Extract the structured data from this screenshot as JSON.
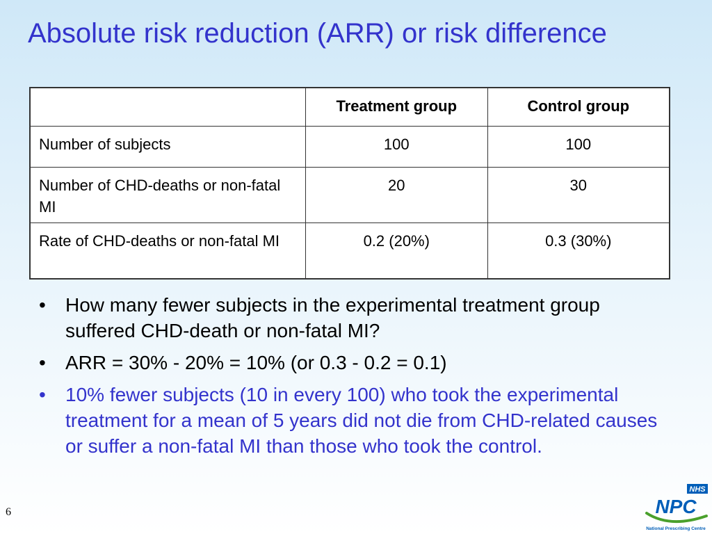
{
  "slide": {
    "title": "Absolute risk reduction (ARR) or risk difference",
    "page_number": "6"
  },
  "table": {
    "headers": [
      "",
      "Treatment group",
      "Control group"
    ],
    "rows": [
      {
        "label": "Number of subjects",
        "treatment": "100",
        "control": "100"
      },
      {
        "label": "Number of CHD-deaths or non-fatal MI",
        "treatment": "20",
        "control": "30"
      },
      {
        "label": "Rate of CHD-deaths or non-fatal MI",
        "treatment": "0.2 (20%)",
        "control": "0.3 (30%)"
      }
    ]
  },
  "bullets": [
    {
      "marker": "•",
      "text": "How many fewer subjects in the experimental treatment group suffered CHD-death or non-fatal MI?"
    },
    {
      "marker": "•",
      "text": "ARR = 30% - 20% = 10% (or 0.3 - 0.2 = 0.1)"
    },
    {
      "marker": "•",
      "text": "10% fewer subjects (10 in every 100) who took the experimental treatment for a mean of 5 years did not die from CHD-related causes or suffer a non-fatal MI than those who took the control."
    }
  ],
  "logo": {
    "nhs_text": "NHS",
    "npc_text": "NPC",
    "org_text": "National Prescribing Centre",
    "colors": {
      "blue": "#005eb8",
      "green": "#4aa02c"
    }
  },
  "colors": {
    "title": "#3333cc",
    "highlight": "#3333cc"
  }
}
